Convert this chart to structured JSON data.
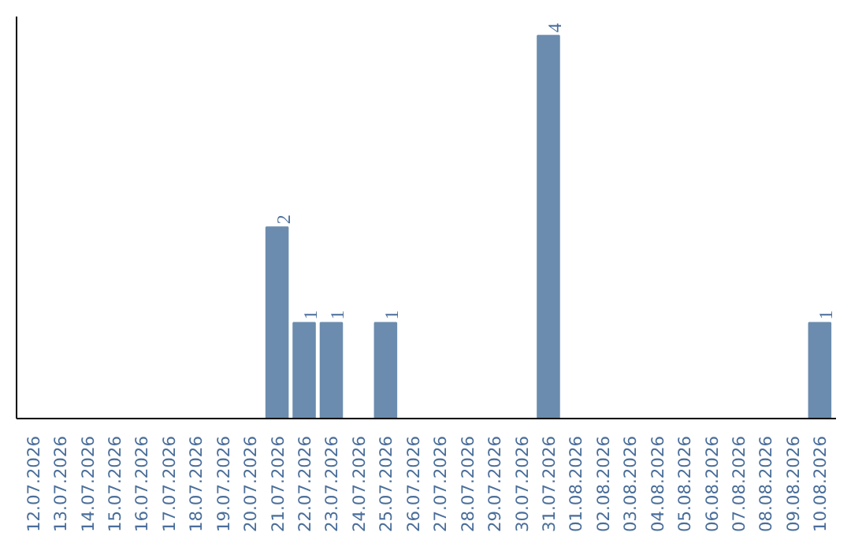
{
  "chart_data": {
    "type": "bar",
    "categories": [
      "12.07.2026",
      "13.07.2026",
      "14.07.2026",
      "15.07.2026",
      "16.07.2026",
      "17.07.2026",
      "18.07.2026",
      "19.07.2026",
      "20.07.2026",
      "21.07.2026",
      "22.07.2026",
      "23.07.2026",
      "24.07.2026",
      "25.07.2026",
      "26.07.2026",
      "27.07.2026",
      "28.07.2026",
      "29.07.2026",
      "30.07.2026",
      "31.07.2026",
      "01.08.2026",
      "02.08.2026",
      "03.08.2026",
      "04.08.2026",
      "05.08.2026",
      "06.08.2026",
      "07.08.2026",
      "08.08.2026",
      "09.08.2026",
      "10.08.2026"
    ],
    "values": [
      0,
      0,
      0,
      0,
      0,
      0,
      0,
      0,
      0,
      2,
      1,
      1,
      0,
      1,
      0,
      0,
      0,
      0,
      0,
      4,
      0,
      0,
      0,
      0,
      0,
      0,
      0,
      0,
      0,
      1
    ],
    "value_labels": [
      null,
      null,
      null,
      null,
      null,
      null,
      null,
      null,
      null,
      "2",
      "1",
      "1",
      null,
      "1",
      null,
      null,
      null,
      null,
      null,
      "4",
      null,
      null,
      null,
      null,
      null,
      null,
      null,
      null,
      null,
      "1"
    ],
    "color": "#6b8cae",
    "ylim": [
      0,
      4.2
    ],
    "tick_labels": "x",
    "grid": false
  }
}
